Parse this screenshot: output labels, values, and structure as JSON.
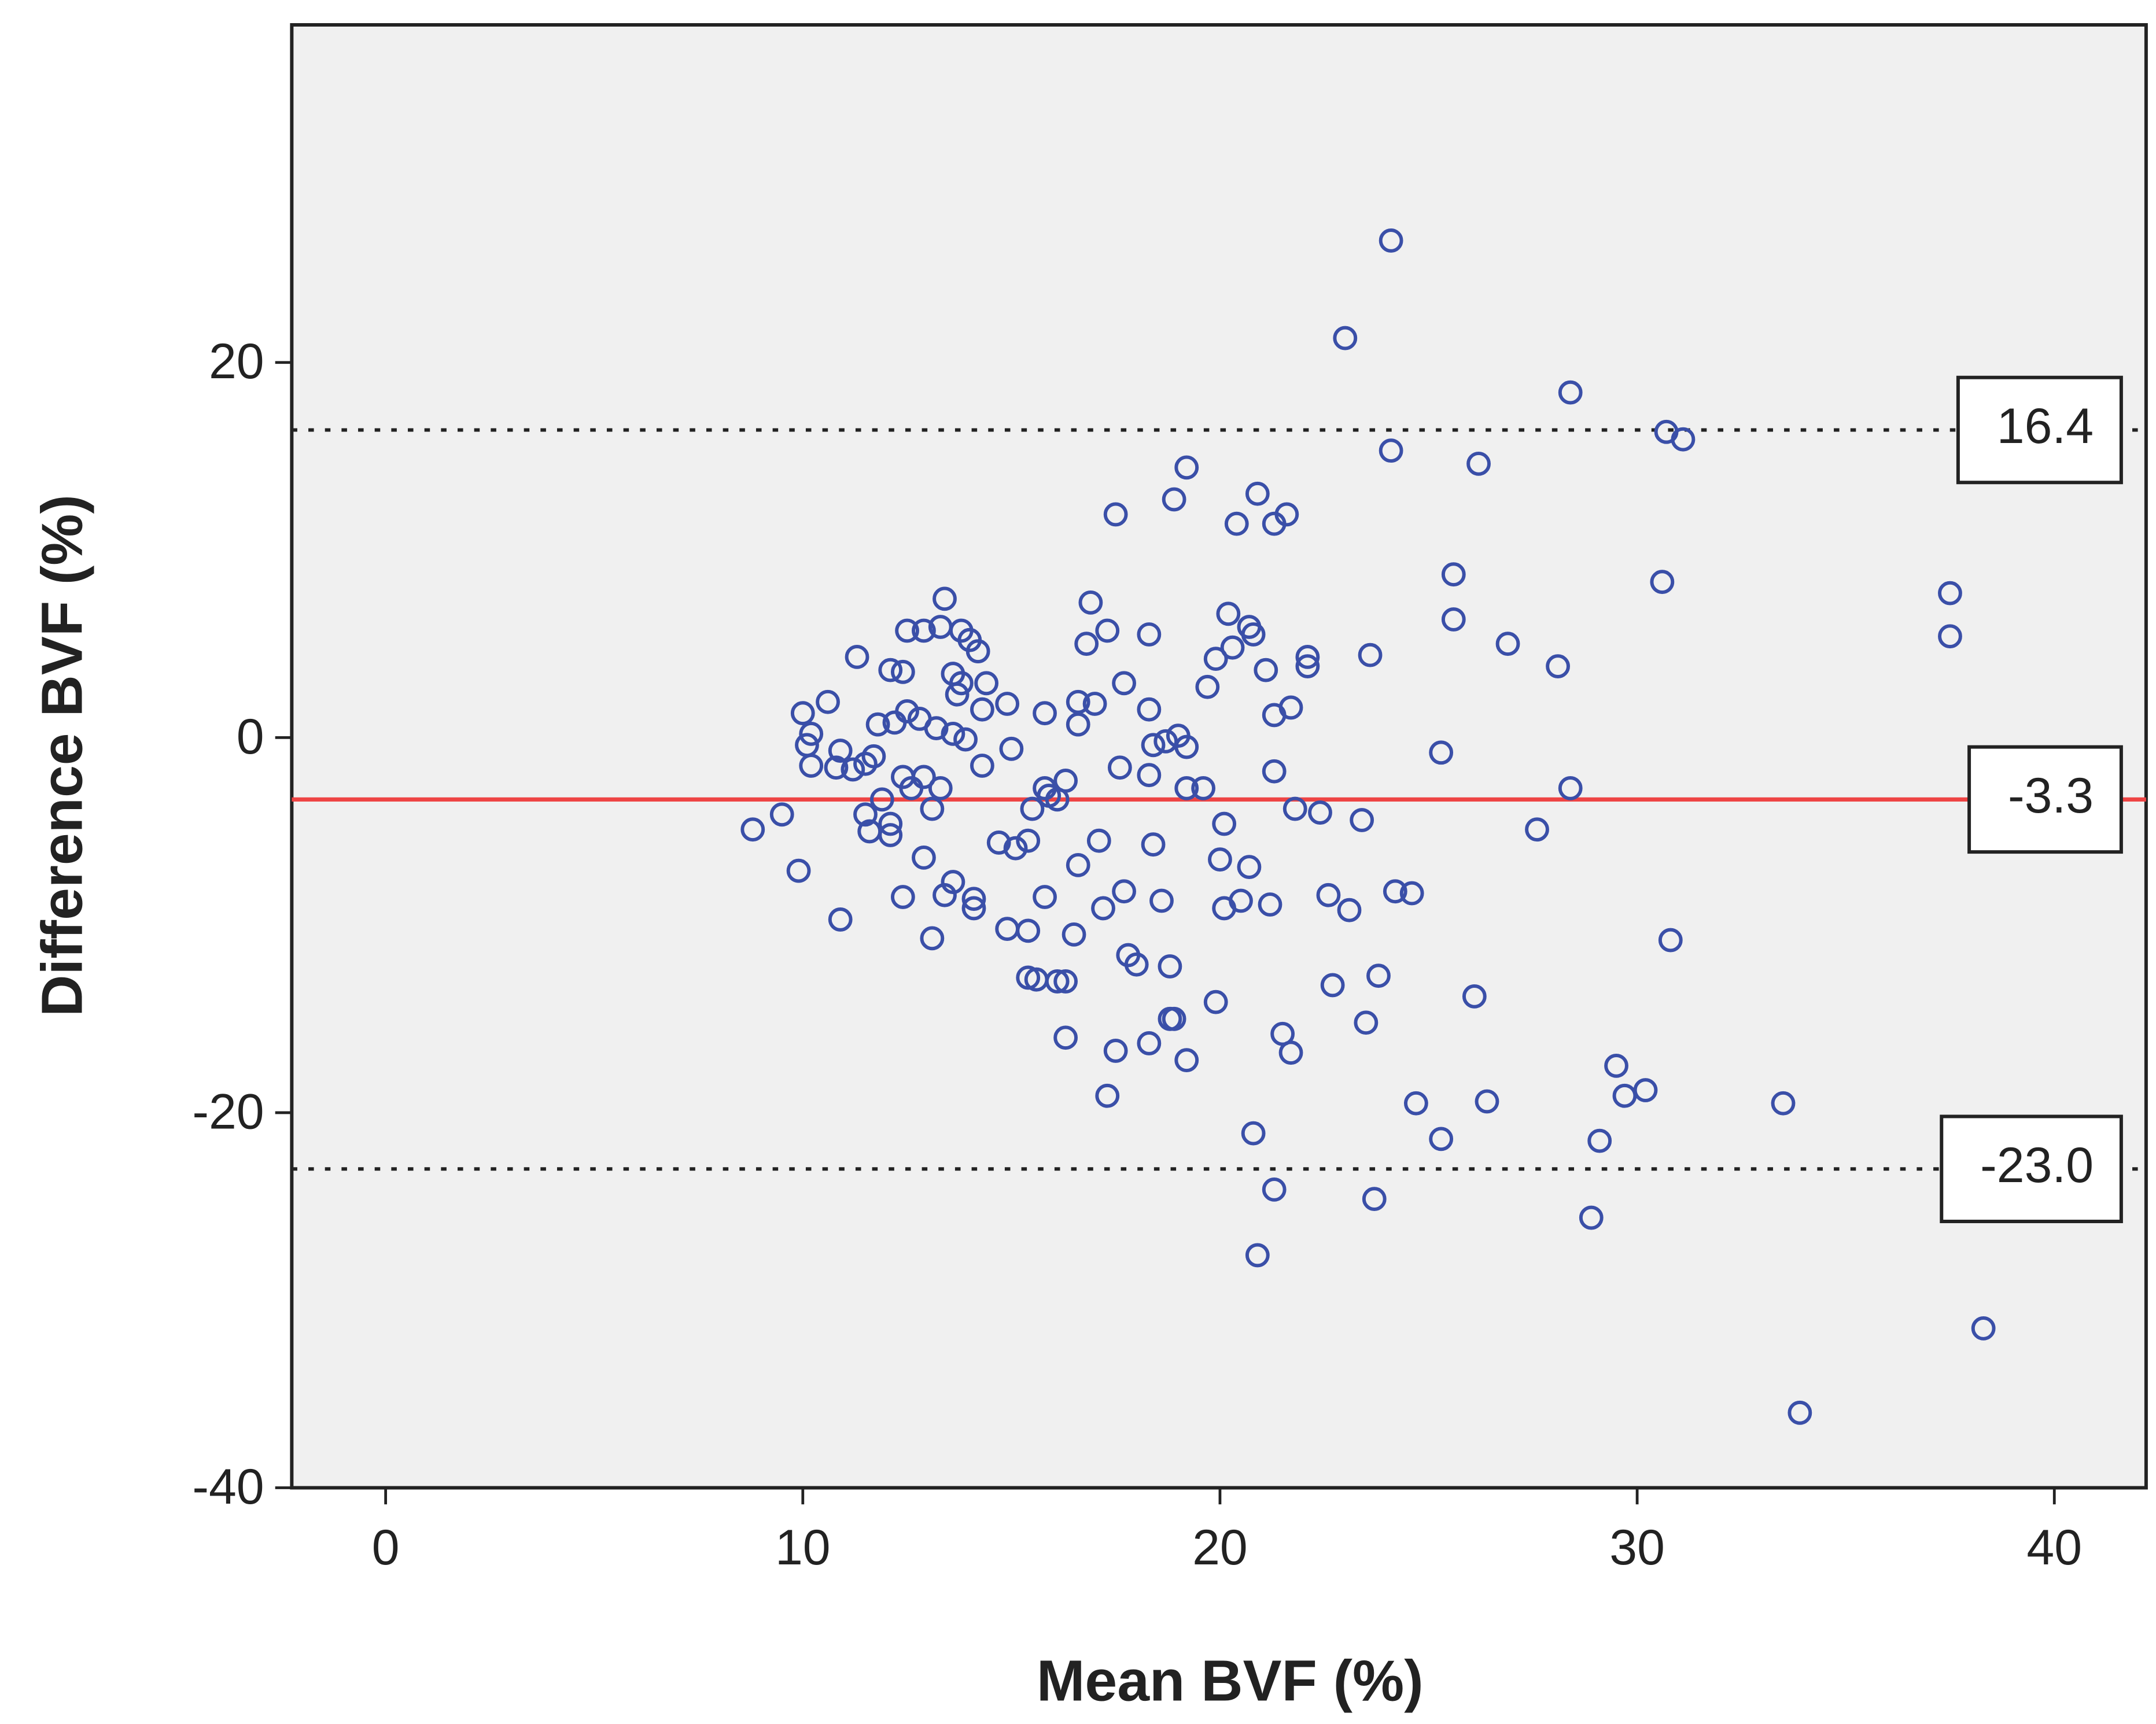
{
  "chart_data": {
    "type": "scatter",
    "x_label": "Mean BVF (%)",
    "y_label": "Difference BVF (%)",
    "color": "#3a4fa8",
    "x": [
      24.1,
      23.0,
      28.4,
      30.7,
      31.1,
      24.1,
      26.2,
      19.2,
      18.9,
      20.9,
      17.5,
      20.4,
      21.3,
      21.6,
      25.6,
      30.6,
      37.5,
      37.5,
      13.4,
      16.9,
      20.2,
      25.6,
      12.5,
      12.9,
      13.3,
      13.8,
      14.0,
      14.2,
      17.3,
      18.3,
      20.7,
      20.8,
      16.8,
      20.3,
      26.9,
      11.3,
      19.9,
      22.1,
      22.1,
      23.6,
      28.1,
      12.1,
      12.4,
      13.6,
      21.1,
      13.8,
      14.4,
      17.7,
      19.7,
      10.6,
      13.7,
      14.9,
      16.6,
      17.0,
      14.3,
      12.5,
      15.8,
      18.3,
      21.7,
      21.3,
      10.0,
      12.8,
      13.2,
      11.8,
      12.2,
      16.6,
      10.2,
      13.6,
      13.9,
      19.0,
      18.7,
      18.4,
      19.2,
      10.1,
      10.9,
      15.0,
      25.3,
      11.7,
      10.2,
      10.8,
      11.2,
      11.5,
      14.3,
      17.6,
      21.3,
      18.3,
      12.4,
      12.9,
      16.3,
      12.6,
      13.3,
      15.8,
      19.2,
      19.6,
      28.4,
      11.9,
      15.9,
      16.1,
      13.1,
      15.5,
      11.5,
      21.8,
      22.4,
      9.5,
      12.1,
      20.1,
      23.4,
      8.8,
      11.6,
      12.1,
      27.6,
      14.7,
      17.1,
      18.4,
      15.4,
      15.1,
      12.9,
      20.0,
      16.6,
      20.7,
      9.9,
      13.6,
      17.7,
      13.4,
      12.4,
      14.1,
      15.8,
      22.6,
      24.2,
      24.6,
      18.6,
      20.5,
      14.1,
      17.2,
      20.1,
      21.2,
      23.1,
      10.9,
      14.9,
      15.4,
      16.5,
      13.1,
      30.8,
      17.8,
      18.0,
      18.8,
      23.8,
      15.4,
      15.6,
      16.1,
      16.3,
      22.7,
      26.1,
      19.9,
      18.8,
      18.9,
      23.5,
      21.5,
      16.3,
      18.3,
      17.5,
      21.7,
      19.2,
      29.5,
      30.2,
      29.7,
      17.3,
      24.7,
      26.4,
      33.5,
      20.8,
      25.3,
      29.1,
      21.3,
      23.7,
      28.9,
      20.9,
      38.3,
      33.9
    ],
    "values": [
      26.5,
      21.3,
      18.4,
      16.3,
      15.9,
      15.3,
      14.6,
      14.4,
      12.7,
      13.0,
      11.9,
      11.4,
      11.4,
      11.9,
      8.7,
      8.3,
      7.7,
      5.4,
      7.4,
      7.2,
      6.6,
      6.3,
      5.7,
      5.7,
      5.9,
      5.7,
      5.2,
      4.6,
      5.7,
      5.5,
      5.9,
      5.5,
      5.0,
      4.8,
      5.0,
      4.3,
      4.2,
      4.3,
      3.8,
      4.4,
      3.8,
      3.6,
      3.5,
      3.4,
      3.6,
      2.9,
      2.9,
      2.9,
      2.7,
      1.9,
      2.3,
      1.8,
      1.9,
      1.8,
      1.5,
      1.4,
      1.3,
      1.5,
      1.6,
      1.2,
      1.3,
      1.0,
      0.5,
      0.7,
      0.8,
      0.7,
      0.2,
      0.2,
      -0.1,
      0.1,
      -0.2,
      -0.4,
      -0.5,
      -0.4,
      -0.7,
      -0.6,
      -0.8,
      -1.0,
      -1.5,
      -1.6,
      -1.7,
      -1.4,
      -1.5,
      -1.6,
      -1.8,
      -2.0,
      -2.1,
      -2.1,
      -2.3,
      -2.7,
      -2.7,
      -2.7,
      -2.7,
      -2.7,
      -2.7,
      -3.3,
      -3.1,
      -3.3,
      -3.8,
      -3.8,
      -4.1,
      -3.8,
      -4.0,
      -4.1,
      -4.6,
      -4.6,
      -4.4,
      -4.9,
      -5.0,
      -5.2,
      -4.9,
      -5.6,
      -5.5,
      -5.7,
      -5.5,
      -5.9,
      -6.4,
      -6.5,
      -6.8,
      -6.9,
      -7.1,
      -7.7,
      -8.2,
      -8.4,
      -8.5,
      -8.6,
      -8.5,
      -8.4,
      -8.2,
      -8.3,
      -8.7,
      -8.7,
      -9.1,
      -9.1,
      -9.1,
      -8.9,
      -9.2,
      -9.7,
      -10.2,
      -10.3,
      -10.5,
      -10.7,
      -10.8,
      -11.6,
      -12.1,
      -12.2,
      -12.7,
      -12.8,
      -12.9,
      -13.0,
      -13.0,
      -13.2,
      -13.8,
      -14.1,
      -15.0,
      -15.0,
      -15.2,
      -15.8,
      -16.0,
      -16.3,
      -16.7,
      -16.8,
      -17.2,
      -17.5,
      -18.8,
      -19.1,
      -19.1,
      -19.5,
      -19.4,
      -19.5,
      -21.1,
      -21.4,
      -21.5,
      -24.1,
      -24.6,
      -25.6,
      -27.6,
      -31.5,
      -36.0
    ],
    "lines": [
      {
        "value": 16.4,
        "label": "16.4",
        "color": "#222222",
        "style": "dotted"
      },
      {
        "value": -3.3,
        "label": "-3.3",
        "color": "#ee4444",
        "style": "solid"
      },
      {
        "value": -23.0,
        "label": "-23.0",
        "color": "#222222",
        "style": "dotted"
      }
    ],
    "xlim": [
      -2.25,
      42.2
    ],
    "ylim": [
      -40,
      38
    ],
    "xticks": [
      0,
      10,
      20,
      30,
      40
    ],
    "yticks": [
      -40,
      -20,
      0,
      20
    ]
  }
}
